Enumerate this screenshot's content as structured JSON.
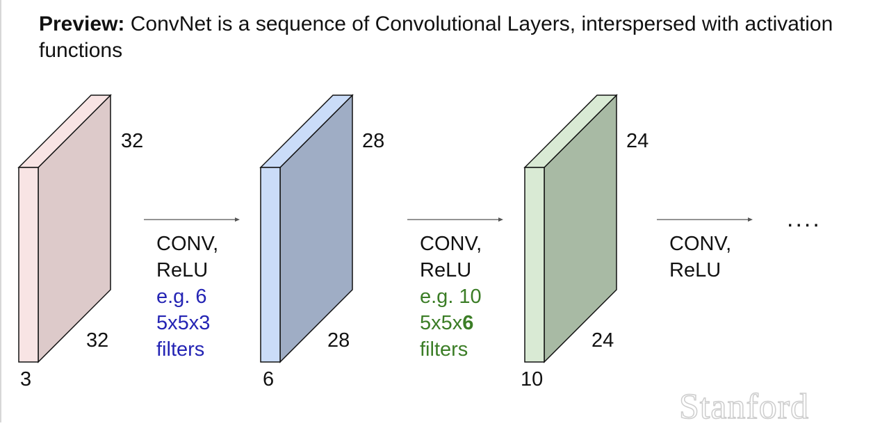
{
  "title": {
    "bold": "Preview:",
    "text": " ConvNet is a sequence of Convolutional Layers, interspersed with activation functions"
  },
  "volumes": [
    {
      "height": "32",
      "width": "32",
      "depth": "3",
      "front_color": "#f8e4e4",
      "side_color": "#ddcaca"
    },
    {
      "height": "28",
      "width": "28",
      "depth": "6",
      "front_color": "#cadcf8",
      "side_color": "#9fadc5"
    },
    {
      "height": "24",
      "width": "24",
      "depth": "10",
      "front_color": "#d9ead4",
      "side_color": "#a8baa4"
    }
  ],
  "operations": [
    {
      "line1": "CONV,",
      "line2": "ReLU",
      "line3": "e.g. 6",
      "line4_prefix": "5x5x3",
      "line4_bold": "",
      "line5": "filters",
      "color": "#2424b4"
    },
    {
      "line1": "CONV,",
      "line2": "ReLU",
      "line3": "e.g. 10",
      "line4_prefix": "5x5x",
      "line4_bold": "6",
      "line5": "filters",
      "color": "#3b7d26"
    },
    {
      "line1": "CONV,",
      "line2": "ReLU"
    }
  ],
  "ellipsis": "....",
  "logo": "Stanford",
  "colors": {
    "outline": "#111111",
    "arrow": "#555555"
  }
}
